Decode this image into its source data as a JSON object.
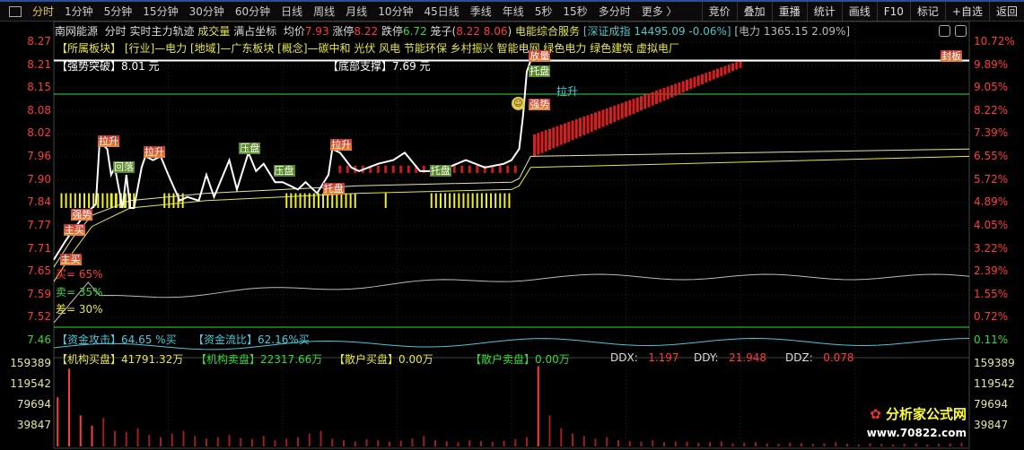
{
  "toolbar": {
    "periods": [
      "分时",
      "1分钟",
      "5分钟",
      "15分钟",
      "30分钟",
      "60分钟",
      "日线",
      "周线",
      "月线",
      "10分钟",
      "45日线",
      "季线",
      "年线",
      "5秒",
      "15秒",
      "多分时",
      "更多 〉"
    ],
    "active": "分时",
    "buttons": [
      "竞价",
      "叠加",
      "重播",
      "统计",
      "画线",
      "F10",
      "标记",
      "+自选",
      "返回"
    ]
  },
  "info": {
    "stock": "南网能源",
    "mode": "分时",
    "indicator": "实时主力轨迹",
    "volume_label": "成交量",
    "full_axis": "满占坐标",
    "avg_label": "均价",
    "avg": "7.93",
    "limit_up_label": "涨停",
    "limit_up": "8.22",
    "limit_down_label": "跌停",
    "limit_down": "6.72",
    "cage_label": "笼子(",
    "cage": "8.22 8.06",
    ")": ")",
    "industry": "电能综合服务",
    "index": "[深证成指 14495.09 -0.06%]",
    "sector": "[电力 1365.15 2.09%]"
  },
  "sector_line": "【所属板块】 [行业]—电力 [地域]—广东板块 [概念]—碳中和 光伏 风电 节能环保 乡村振兴 智能电网 绿色电力 绿色建筑 虚拟电厂",
  "breakout": {
    "label": "【强势突破】",
    "value": "8.01 元"
  },
  "support": {
    "label": "【底部支撑】",
    "value": "7.69 元"
  },
  "ratios": {
    "buy": "买= 65%",
    "sell": "卖= 35%",
    "diff": "差= 30%"
  },
  "fund": {
    "attack_label": "【资金攻击】",
    "attack": "64.65 %买",
    "flow_label": "【资金流比】",
    "flow": "62.16%买"
  },
  "orders": {
    "inst_buy_label": "【机构买盘】",
    "inst_buy": "41791.32万",
    "inst_sell_label": "【机构卖盘】",
    "inst_sell": "22317.66万",
    "retail_buy_label": "【散户买盘】",
    "retail_buy": "0.00万",
    "retail_sell_label": "【散户卖盘】",
    "retail_sell": "0.00万"
  },
  "dd": {
    "ddx_label": "DDX:",
    "ddx": "1.197",
    "ddy_label": "DDY:",
    "ddy": "21.948",
    "ddz_label": "DDZ:",
    "ddz": "0.078"
  },
  "price_axis": [
    "8.27",
    "8.21",
    "8.15",
    "8.08",
    "8.02",
    "7.96",
    "7.90",
    "7.84",
    "7.77",
    "7.71",
    "7.65",
    "7.59",
    "7.52",
    "7.46"
  ],
  "pct_axis": [
    "10.72%",
    "9.89%",
    "9.05%",
    "8.22%",
    "7.39%",
    "6.55%",
    "5.72%",
    "4.89%",
    "4.05%",
    "3.22%",
    "2.39%",
    "1.55%",
    "0.72%",
    "0.11%"
  ],
  "volume_axis": [
    "159389",
    "119542",
    "79694",
    "39847"
  ],
  "tags": [
    {
      "t": "主买",
      "c": "red",
      "m": 2,
      "p": 7.68
    },
    {
      "t": "主买",
      "c": "red",
      "m": 3,
      "p": 7.76
    },
    {
      "t": "强势",
      "c": "red",
      "m": 5,
      "p": 7.8
    },
    {
      "t": "拉升",
      "c": "red",
      "m": 12,
      "p": 8.0
    },
    {
      "t": "回落",
      "c": "green",
      "m": 16,
      "p": 7.93
    },
    {
      "t": "拉升",
      "c": "red",
      "m": 24,
      "p": 7.97
    },
    {
      "t": "压盘",
      "c": "green",
      "m": 49,
      "p": 7.98
    },
    {
      "t": "压盘",
      "c": "green",
      "m": 58,
      "p": 7.92
    },
    {
      "t": "托盘",
      "c": "red",
      "m": 71,
      "p": 7.87
    },
    {
      "t": "拉升",
      "c": "red",
      "m": 73,
      "p": 7.99
    },
    {
      "t": "托盘",
      "c": "green",
      "m": 99,
      "p": 7.92
    },
    {
      "t": "强势",
      "c": "red",
      "m": 125,
      "p": 8.1
    },
    {
      "t": "放量",
      "c": "red",
      "m": 125,
      "p": 8.23
    },
    {
      "t": "托盘",
      "c": "green",
      "m": 125,
      "p": 8.19
    },
    {
      "t": "封板",
      "c": "red",
      "m": 233,
      "p": 8.23
    }
  ],
  "uplift_tag": "拉升",
  "colors": {
    "up": "#ff3b3b",
    "down": "#3bd83b",
    "price": "#ffffff",
    "avg": "#e6e64b",
    "fund": "#4bc8d8"
  },
  "chart_data": {
    "type": "line",
    "x_unit": "minute",
    "ylim": [
      7.46,
      8.27
    ],
    "price": [
      [
        0,
        7.68
      ],
      [
        3,
        7.73
      ],
      [
        5,
        7.76
      ],
      [
        8,
        7.8
      ],
      [
        11,
        7.83
      ],
      [
        12,
        8.0
      ],
      [
        14,
        7.98
      ],
      [
        15,
        7.91
      ],
      [
        16,
        7.93
      ],
      [
        18,
        7.82
      ],
      [
        19,
        7.91
      ],
      [
        20,
        7.82
      ],
      [
        21,
        7.82
      ],
      [
        23,
        7.93
      ],
      [
        24,
        7.96
      ],
      [
        26,
        7.95
      ],
      [
        28,
        7.96
      ],
      [
        30,
        7.91
      ],
      [
        33,
        7.84
      ],
      [
        35,
        7.85
      ],
      [
        38,
        7.84
      ],
      [
        40,
        7.91
      ],
      [
        42,
        7.85
      ],
      [
        44,
        7.9
      ],
      [
        46,
        7.95
      ],
      [
        48,
        7.87
      ],
      [
        51,
        7.97
      ],
      [
        53,
        7.92
      ],
      [
        55,
        7.94
      ],
      [
        58,
        7.89
      ],
      [
        60,
        7.89
      ],
      [
        64,
        7.87
      ],
      [
        66,
        7.89
      ],
      [
        69,
        7.86
      ],
      [
        72,
        7.91
      ],
      [
        73,
        7.98
      ],
      [
        75,
        7.97
      ],
      [
        78,
        7.93
      ],
      [
        80,
        7.92
      ],
      [
        85,
        7.94
      ],
      [
        89,
        7.95
      ],
      [
        92,
        7.97
      ],
      [
        96,
        7.92
      ],
      [
        101,
        7.92
      ],
      [
        108,
        7.95
      ],
      [
        113,
        7.93
      ],
      [
        118,
        7.94
      ],
      [
        120,
        7.95
      ],
      [
        122,
        7.98
      ],
      [
        123,
        8.07
      ],
      [
        124,
        8.19
      ],
      [
        125,
        8.22
      ],
      [
        240,
        8.22
      ]
    ],
    "avg1": [
      [
        0,
        7.66
      ],
      [
        5,
        7.74
      ],
      [
        10,
        7.8
      ],
      [
        20,
        7.84
      ],
      [
        40,
        7.86
      ],
      [
        80,
        7.88
      ],
      [
        120,
        7.89
      ],
      [
        122,
        7.9
      ],
      [
        125,
        7.96
      ],
      [
        240,
        7.98
      ]
    ],
    "avg2": [
      [
        0,
        7.62
      ],
      [
        5,
        7.7
      ],
      [
        10,
        7.77
      ],
      [
        20,
        7.82
      ],
      [
        40,
        7.84
      ],
      [
        80,
        7.86
      ],
      [
        120,
        7.87
      ],
      [
        122,
        7.88
      ],
      [
        125,
        7.93
      ],
      [
        240,
        7.96
      ]
    ],
    "volume": [
      95000,
      150000,
      60000,
      40000,
      55000,
      30000,
      28000,
      35000,
      22000,
      18000,
      25000,
      30000,
      20000,
      15000,
      18000,
      22000,
      16000,
      14000,
      20000,
      12000,
      15000,
      18000,
      25000,
      30000,
      15000,
      12000,
      10000,
      14000,
      12000,
      9000,
      11000,
      15000,
      20000,
      12000,
      10000,
      8000,
      12000,
      10000,
      9000,
      11000,
      14000,
      18000,
      155000,
      60000,
      35000,
      25000,
      20000,
      15000,
      18000,
      12000,
      10000,
      9000,
      12000,
      8000,
      10000,
      9000,
      7000,
      8000,
      10000,
      6000,
      7000,
      8000,
      6000,
      5000,
      7000,
      6000,
      5000,
      6000,
      8000,
      5000,
      4000,
      6000,
      5000,
      4000,
      5000,
      6000,
      4000,
      5000,
      6000,
      7000
    ]
  }
}
